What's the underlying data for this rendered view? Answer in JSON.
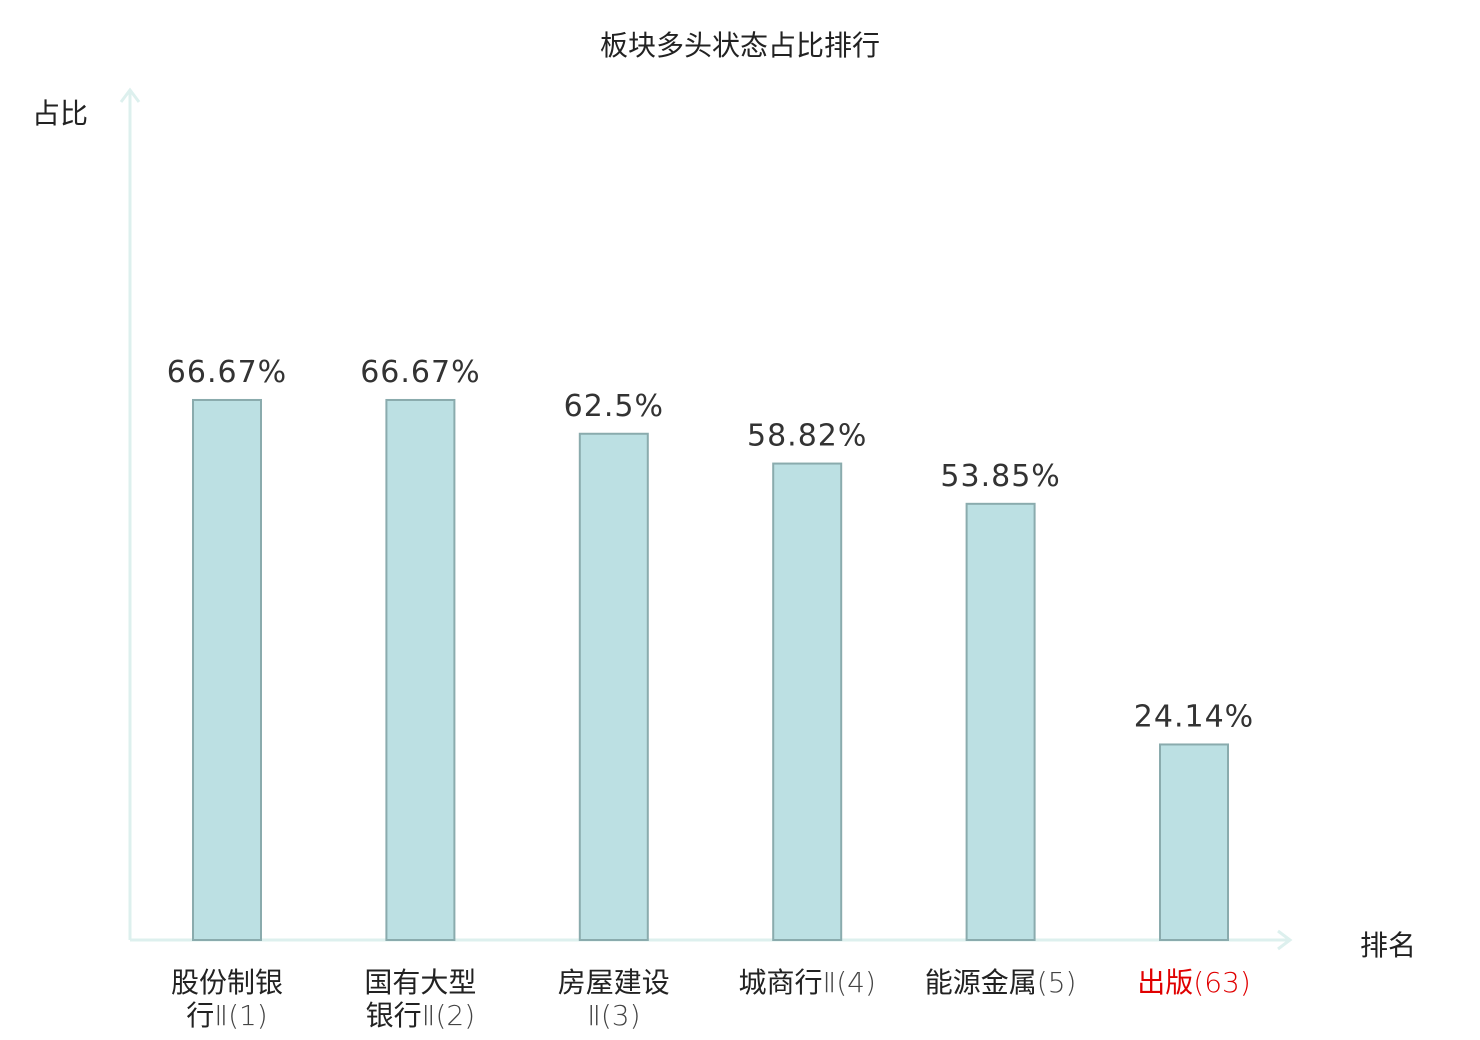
{
  "chart_data": {
    "type": "bar",
    "title": "板块多头状态占比排行",
    "ylabel": "占比",
    "xlabel": "排名",
    "ylim": [
      0,
      100
    ],
    "grid": false,
    "categories": [
      {
        "name": "股份制银",
        "line2": "行",
        "suffix": "Ⅱ(1)",
        "highlight": false
      },
      {
        "name": "国有大型",
        "line2": "银行",
        "suffix": "Ⅱ(2)",
        "highlight": false
      },
      {
        "name": "房屋建设",
        "line2": "",
        "suffix": "Ⅱ(3)",
        "highlight": false
      },
      {
        "name": "城商行",
        "line2": "",
        "suffix": "Ⅱ(4)",
        "highlight": false
      },
      {
        "name": "能源金属",
        "line2": "",
        "suffix": "(5)",
        "highlight": false
      },
      {
        "name": "出版",
        "line2": "",
        "suffix": "(63)",
        "highlight": true
      }
    ],
    "values": [
      66.67,
      66.67,
      62.5,
      58.82,
      53.85,
      24.14
    ],
    "value_labels": [
      "66.67%",
      "66.67%",
      "62.5%",
      "58.82%",
      "53.85%",
      "24.14%"
    ],
    "colors": {
      "bar_fill": "#bce0e3",
      "bar_stroke": "#8aabad",
      "axis": "#ddf0ee",
      "label": "#333333",
      "highlight": "#e00000"
    }
  }
}
